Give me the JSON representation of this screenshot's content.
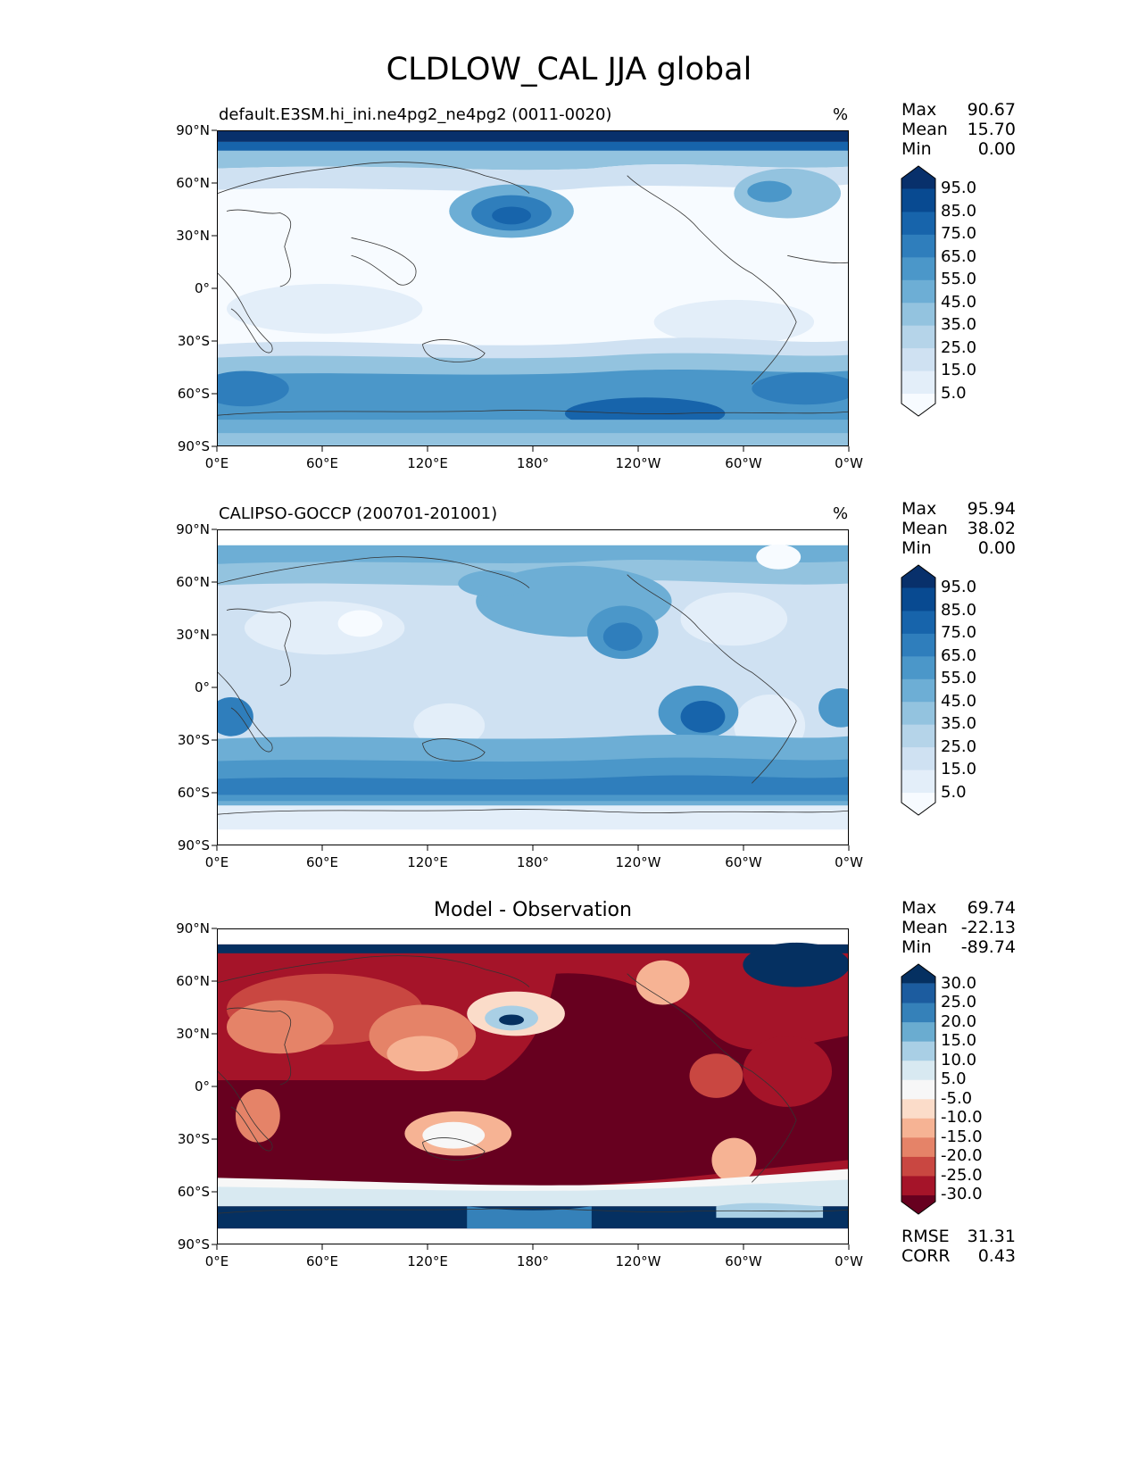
{
  "figure_title": "CLDLOW_CAL JJA global",
  "panels": [
    {
      "label": "default.E3SM.hi_ini.ne4pg2_ne4pg2 (0011-0020)",
      "units": "%",
      "stats": [
        {
          "name": "Max",
          "value": "90.67"
        },
        {
          "name": "Mean",
          "value": "15.70"
        },
        {
          "name": "Min",
          "value": "0.00"
        }
      ],
      "colorbar": {
        "labels": [
          "95.0",
          "85.0",
          "75.0",
          "65.0",
          "55.0",
          "45.0",
          "35.0",
          "25.0",
          "15.0",
          "5.0"
        ],
        "colors": [
          "#f7fbff",
          "#e3eef9",
          "#cfe1f2",
          "#b5d4e9",
          "#93c3df",
          "#6daed5",
          "#4b97c9",
          "#2f7ebc",
          "#1764ab",
          "#084a91",
          "#08306b"
        ]
      }
    },
    {
      "label": "CALIPSO-GOCCP (200701-201001)",
      "units": "%",
      "stats": [
        {
          "name": "Max",
          "value": "95.94"
        },
        {
          "name": "Mean",
          "value": "38.02"
        },
        {
          "name": "Min",
          "value": "0.00"
        }
      ],
      "colorbar": {
        "labels": [
          "95.0",
          "85.0",
          "75.0",
          "65.0",
          "55.0",
          "45.0",
          "35.0",
          "25.0",
          "15.0",
          "5.0"
        ],
        "colors": [
          "#f7fbff",
          "#e3eef9",
          "#cfe1f2",
          "#b5d4e9",
          "#93c3df",
          "#6daed5",
          "#4b97c9",
          "#2f7ebc",
          "#1764ab",
          "#084a91",
          "#08306b"
        ]
      }
    },
    {
      "label": "Model - Observation",
      "units": "",
      "stats": [
        {
          "name": "Max",
          "value": "69.74"
        },
        {
          "name": "Mean",
          "value": "-22.13"
        },
        {
          "name": "Min",
          "value": "-89.74"
        }
      ],
      "metrics": [
        {
          "name": "RMSE",
          "value": "31.31"
        },
        {
          "name": "CORR",
          "value": "0.43"
        }
      ],
      "colorbar": {
        "labels": [
          "30.0",
          "25.0",
          "20.0",
          "15.0",
          "10.0",
          "5.0",
          "-5.0",
          "-10.0",
          "-15.0",
          "-20.0",
          "-25.0",
          "-30.0"
        ],
        "colors": [
          "#67001f",
          "#a51429",
          "#c94741",
          "#e58368",
          "#f6b394",
          "#fbdcc9",
          "#f7f7f7",
          "#d8e9f1",
          "#a9cfe5",
          "#6aacd0",
          "#3581b9",
          "#1c5c9f",
          "#053061"
        ]
      }
    }
  ],
  "lat_ticks": [
    "90°N",
    "60°N",
    "30°N",
    "0°",
    "30°S",
    "60°S",
    "90°S"
  ],
  "lon_ticks": [
    "0°E",
    "60°E",
    "120°E",
    "180°",
    "120°W",
    "60°W",
    "0°W"
  ],
  "chart_data": [
    {
      "type": "heatmap",
      "title": "default.E3SM.hi_ini.ne4pg2_ne4pg2 (0011-0020)",
      "units": "%",
      "projection": "plate carree, central longitude 180",
      "xlim": [
        0,
        360
      ],
      "ylim": [
        -90,
        90
      ],
      "levels": [
        5,
        15,
        25,
        35,
        45,
        55,
        65,
        75,
        85,
        95
      ],
      "max": 90.67,
      "mean": 15.7,
      "min": 0.0
    },
    {
      "type": "heatmap",
      "title": "CALIPSO-GOCCP (200701-201001)",
      "units": "%",
      "xlim": [
        0,
        360
      ],
      "ylim": [
        -90,
        90
      ],
      "levels": [
        5,
        15,
        25,
        35,
        45,
        55,
        65,
        75,
        85,
        95
      ],
      "max": 95.94,
      "mean": 38.02,
      "min": 0.0
    },
    {
      "type": "heatmap",
      "title": "Model - Observation",
      "xlim": [
        0,
        360
      ],
      "ylim": [
        -90,
        90
      ],
      "levels": [
        -30,
        -25,
        -20,
        -15,
        -10,
        -5,
        5,
        10,
        15,
        20,
        25,
        30
      ],
      "max": 69.74,
      "mean": -22.13,
      "min": -89.74,
      "rmse": 31.31,
      "corr": 0.43
    }
  ]
}
